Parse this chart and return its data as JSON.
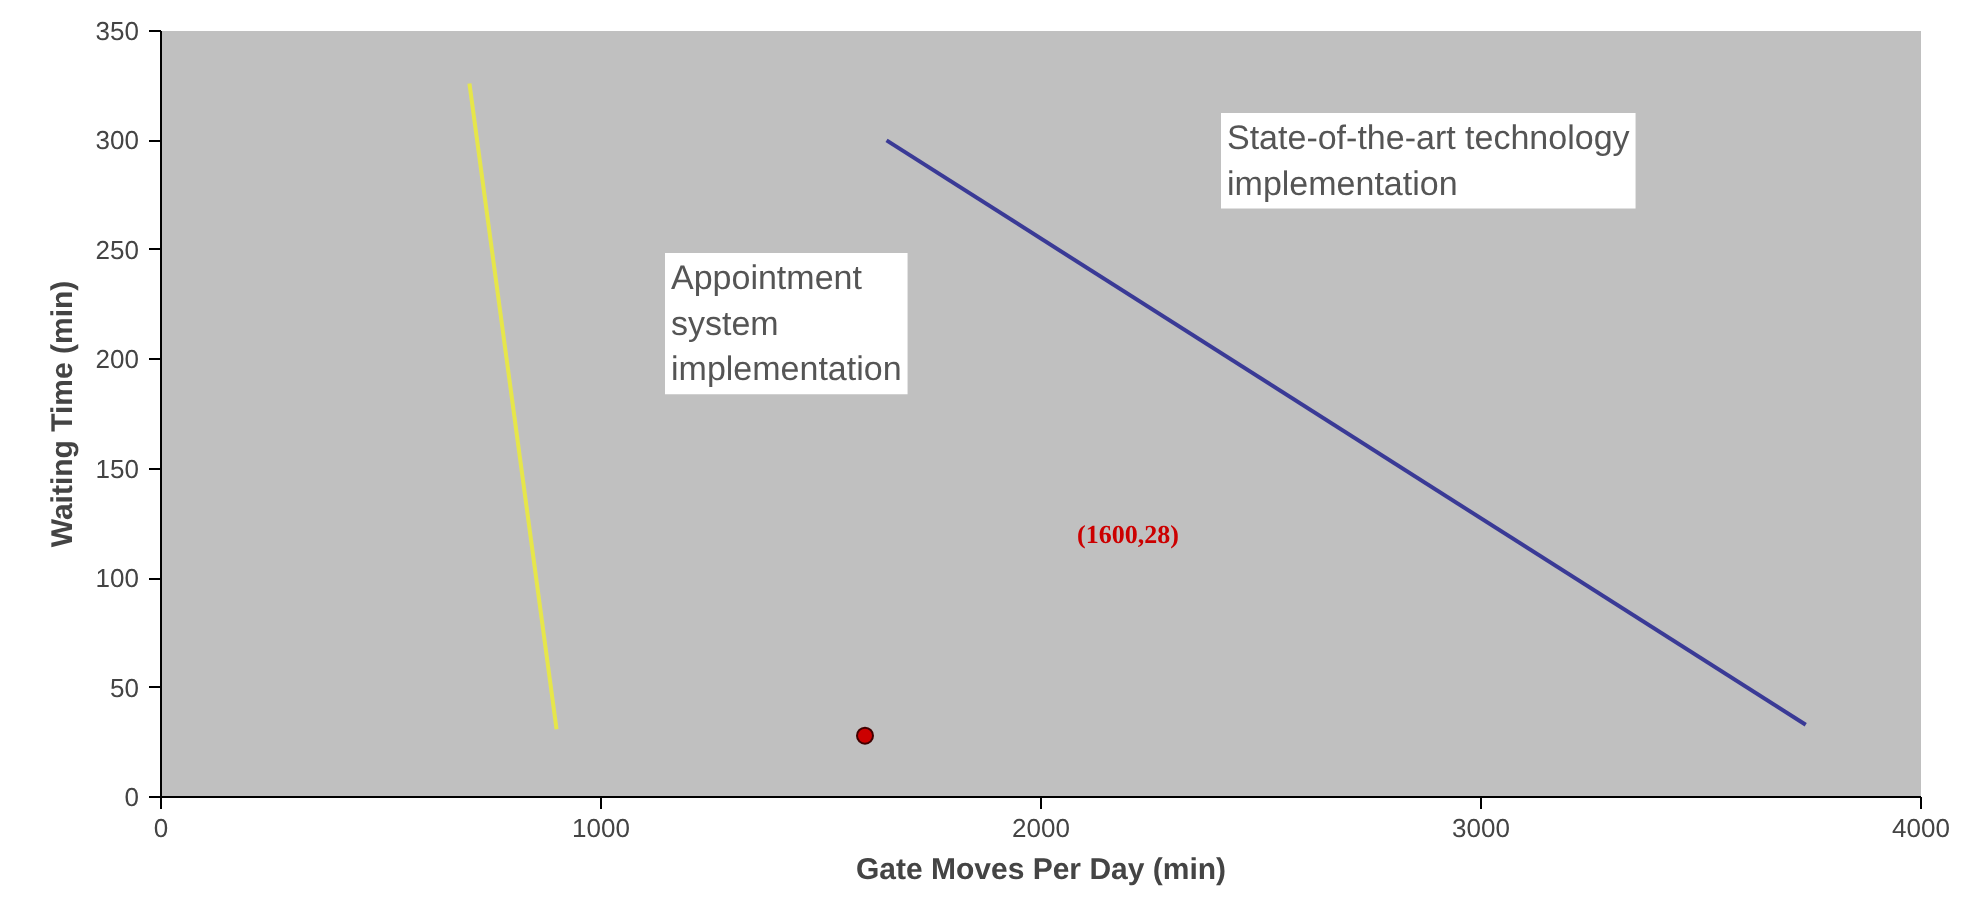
{
  "chart_data": {
    "type": "line",
    "xlabel": "Gate Moves Per Day (min)",
    "ylabel": "Waiting Time (min)",
    "xlim": [
      0,
      4000
    ],
    "xticks": [
      0,
      1000,
      2000,
      3000,
      4000
    ],
    "ylim": [
      0,
      350
    ],
    "yticks": [
      0,
      50,
      100,
      150,
      200,
      250,
      300,
      350
    ],
    "grid": false,
    "series": [
      {
        "color": "#e6e64a",
        "x": [
          701,
          899
        ],
        "values": [
          326,
          31
        ]
      },
      {
        "color": "#3a3a96",
        "x": [
          1649,
          3738
        ],
        "values": [
          300,
          33
        ]
      },
      {
        "type": "scatter",
        "color": "#cc0000",
        "marker": "circle",
        "x": [
          1600
        ],
        "values": [
          28
        ]
      }
    ],
    "annotations": [
      "Appointment system implementation",
      "State-of-the-art technology implementation",
      "(1600,28)"
    ]
  }
}
